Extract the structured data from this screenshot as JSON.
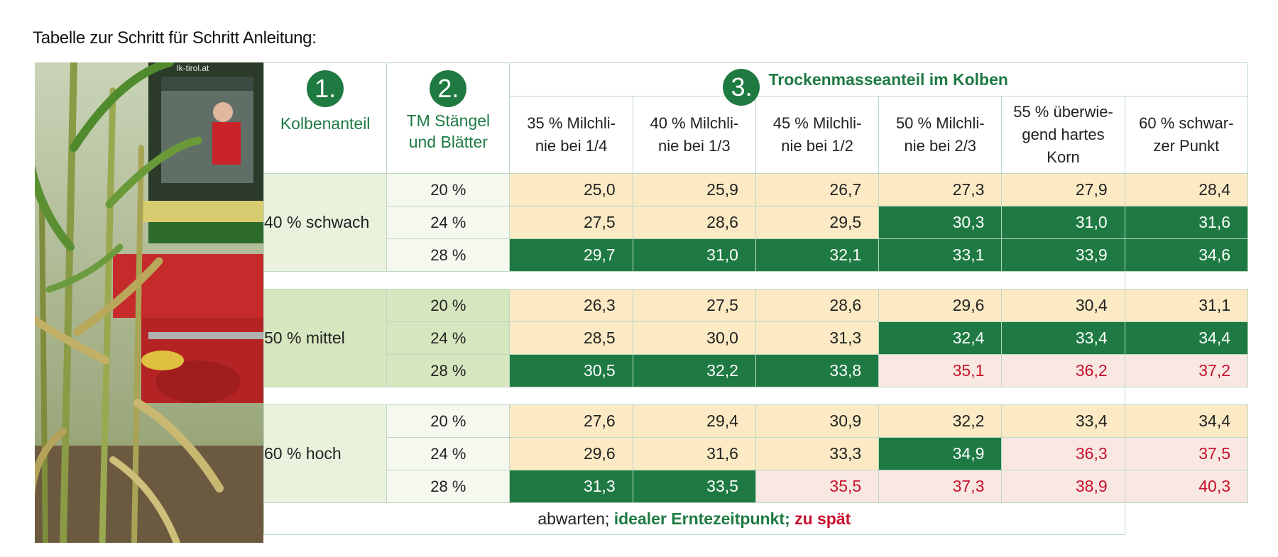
{
  "title": "Tabelle zur Schritt für Schritt Anleitung:",
  "photo": {
    "watermark": "lk-tirol.at"
  },
  "header": {
    "col1": {
      "number": "1.",
      "label": "Kolbenanteil"
    },
    "col2": {
      "number": "2.",
      "label_line1": "TM Stängel",
      "label_line2": "und Blätter"
    },
    "col3": {
      "number": "3.",
      "label": "Trockenmasseanteil im Kolben"
    },
    "stages": [
      {
        "line1": "35 % Milchli-",
        "line2": "nie bei 1/4",
        "line3": ""
      },
      {
        "line1": "40 % Milchli-",
        "line2": "nie bei 1/3",
        "line3": ""
      },
      {
        "line1": "45 % Milchli-",
        "line2": "nie bei 1/2",
        "line3": ""
      },
      {
        "line1": "50 % Milchli-",
        "line2": "nie bei 2/3",
        "line3": ""
      },
      {
        "line1": "55 % überwie-",
        "line2": "gend hartes",
        "line3": "Korn"
      },
      {
        "line1": "60 % schwar-",
        "line2": "zer Punkt",
        "line3": ""
      }
    ]
  },
  "groups": [
    {
      "label": "40 % schwach",
      "rows": [
        {
          "tm": "20 %",
          "cells": [
            {
              "v": "25,0",
              "s": "wait"
            },
            {
              "v": "25,9",
              "s": "wait"
            },
            {
              "v": "26,7",
              "s": "wait"
            },
            {
              "v": "27,3",
              "s": "wait"
            },
            {
              "v": "27,9",
              "s": "wait"
            },
            {
              "v": "28,4",
              "s": "wait"
            }
          ]
        },
        {
          "tm": "24 %",
          "cells": [
            {
              "v": "27,5",
              "s": "wait"
            },
            {
              "v": "28,6",
              "s": "wait"
            },
            {
              "v": "29,5",
              "s": "wait"
            },
            {
              "v": "30,3",
              "s": "ideal"
            },
            {
              "v": "31,0",
              "s": "ideal"
            },
            {
              "v": "31,6",
              "s": "ideal"
            }
          ]
        },
        {
          "tm": "28 %",
          "cells": [
            {
              "v": "29,7",
              "s": "ideal"
            },
            {
              "v": "31,0",
              "s": "ideal"
            },
            {
              "v": "32,1",
              "s": "ideal"
            },
            {
              "v": "33,1",
              "s": "ideal"
            },
            {
              "v": "33,9",
              "s": "ideal"
            },
            {
              "v": "34,6",
              "s": "ideal"
            }
          ]
        }
      ]
    },
    {
      "label": "50 %  mittel",
      "rows": [
        {
          "tm": "20 %",
          "cells": [
            {
              "v": "26,3",
              "s": "wait"
            },
            {
              "v": "27,5",
              "s": "wait"
            },
            {
              "v": "28,6",
              "s": "wait"
            },
            {
              "v": "29,6",
              "s": "wait"
            },
            {
              "v": "30,4",
              "s": "wait"
            },
            {
              "v": "31,1",
              "s": "wait"
            }
          ]
        },
        {
          "tm": "24 %",
          "cells": [
            {
              "v": "28,5",
              "s": "wait"
            },
            {
              "v": "30,0",
              "s": "wait"
            },
            {
              "v": "31,3",
              "s": "wait"
            },
            {
              "v": "32,4",
              "s": "ideal"
            },
            {
              "v": "33,4",
              "s": "ideal"
            },
            {
              "v": "34,4",
              "s": "ideal"
            }
          ]
        },
        {
          "tm": "28 %",
          "cells": [
            {
              "v": "30,5",
              "s": "ideal"
            },
            {
              "v": "32,2",
              "s": "ideal"
            },
            {
              "v": "33,8",
              "s": "ideal"
            },
            {
              "v": "35,1",
              "s": "late"
            },
            {
              "v": "36,2",
              "s": "late"
            },
            {
              "v": "37,2",
              "s": "late"
            }
          ]
        }
      ]
    },
    {
      "label": "60 %  hoch",
      "rows": [
        {
          "tm": "20 %",
          "cells": [
            {
              "v": "27,6",
              "s": "wait"
            },
            {
              "v": "29,4",
              "s": "wait"
            },
            {
              "v": "30,9",
              "s": "wait"
            },
            {
              "v": "32,2",
              "s": "wait"
            },
            {
              "v": "33,4",
              "s": "wait"
            },
            {
              "v": "34,4",
              "s": "wait"
            }
          ]
        },
        {
          "tm": "24 %",
          "cells": [
            {
              "v": "29,6",
              "s": "wait"
            },
            {
              "v": "31,6",
              "s": "wait"
            },
            {
              "v": "33,3",
              "s": "wait"
            },
            {
              "v": "34,9",
              "s": "ideal"
            },
            {
              "v": "36,3",
              "s": "late"
            },
            {
              "v": "37,5",
              "s": "late"
            }
          ]
        },
        {
          "tm": "28 %",
          "cells": [
            {
              "v": "31,3",
              "s": "ideal"
            },
            {
              "v": "33,5",
              "s": "ideal"
            },
            {
              "v": "35,5",
              "s": "late"
            },
            {
              "v": "37,3",
              "s": "late"
            },
            {
              "v": "38,9",
              "s": "late"
            },
            {
              "v": "40,3",
              "s": "late"
            }
          ]
        }
      ]
    }
  ],
  "legend": {
    "wait": "abwarten;",
    "ideal": "idealer Erntezeitpunkt;",
    "late": "zu spät"
  },
  "colors": {
    "accent_green": "#1e7a42",
    "wait_bg": "#fbeac4",
    "late_bg": "#f8e8e1",
    "late_text": "#c8102e",
    "grid_border": "#bcd7c4"
  }
}
